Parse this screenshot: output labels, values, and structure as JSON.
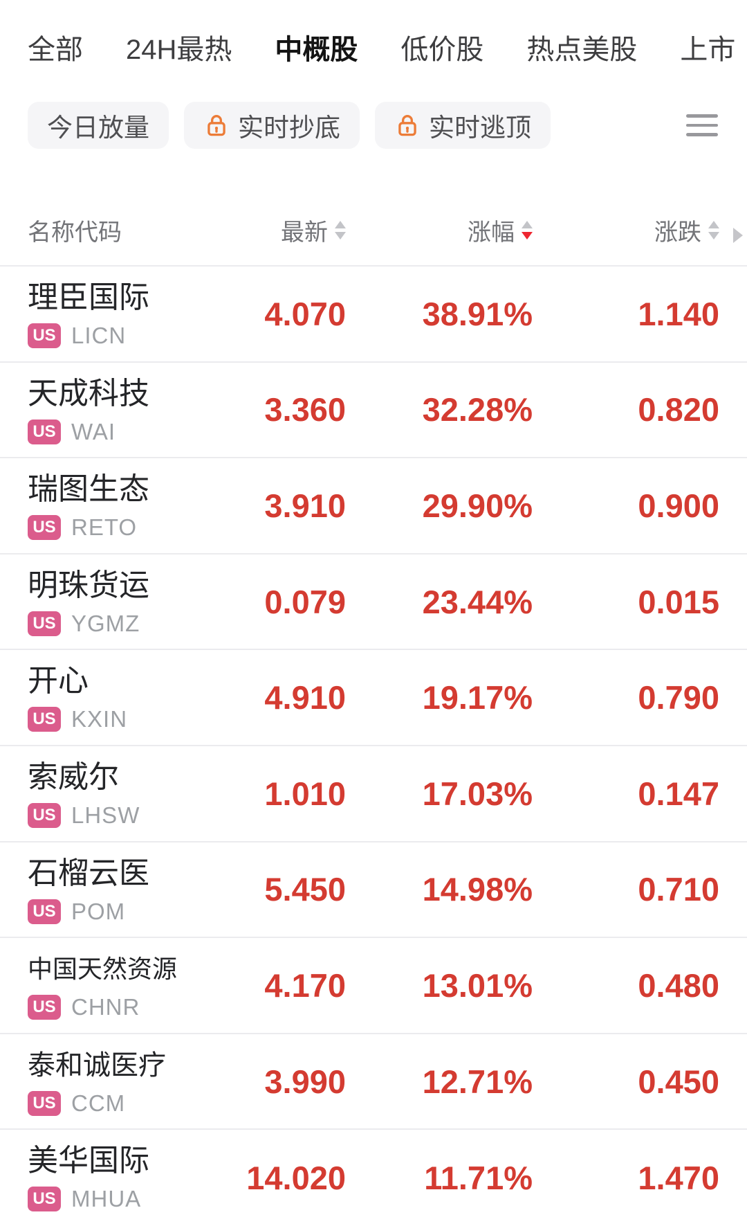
{
  "tabs": {
    "items": [
      {
        "label": "全部",
        "active": false
      },
      {
        "label": "24H最热",
        "active": false
      },
      {
        "label": "中概股",
        "active": true
      },
      {
        "label": "低价股",
        "active": false
      },
      {
        "label": "热点美股",
        "active": false
      },
      {
        "label": "上市",
        "active": false
      }
    ]
  },
  "filter_bar": {
    "buttons": [
      {
        "label": "今日放量",
        "locked": false
      },
      {
        "label": "实时抄底",
        "locked": true
      },
      {
        "label": "实时逃顶",
        "locked": true
      }
    ]
  },
  "table": {
    "header": [
      {
        "label": "名称代码",
        "sortable": false
      },
      {
        "label": "最新",
        "sort": "none"
      },
      {
        "label": "涨幅",
        "sort": "desc"
      },
      {
        "label": "涨跌",
        "sort": "none",
        "more_indicator": true
      }
    ],
    "rows": [
      {
        "name": "理臣国际",
        "market": "US",
        "code": "LICN",
        "last": "4.070",
        "change_pct": "38.91%",
        "change": "1.140"
      },
      {
        "name": "天成科技",
        "market": "US",
        "code": "WAI",
        "last": "3.360",
        "change_pct": "32.28%",
        "change": "0.820"
      },
      {
        "name": "瑞图生态",
        "market": "US",
        "code": "RETO",
        "last": "3.910",
        "change_pct": "29.90%",
        "change": "0.900"
      },
      {
        "name": "明珠货运",
        "market": "US",
        "code": "YGMZ",
        "last": "0.079",
        "change_pct": "23.44%",
        "change": "0.015"
      },
      {
        "name": "开心",
        "market": "US",
        "code": "KXIN",
        "last": "4.910",
        "change_pct": "19.17%",
        "change": "0.790"
      },
      {
        "name": "索威尔",
        "market": "US",
        "code": "LHSW",
        "last": "1.010",
        "change_pct": "17.03%",
        "change": "0.147"
      },
      {
        "name": "石榴云医",
        "market": "US",
        "code": "POM",
        "last": "5.450",
        "change_pct": "14.98%",
        "change": "0.710"
      },
      {
        "name": "中国天然资源",
        "market": "US",
        "code": "CHNR",
        "last": "4.170",
        "change_pct": "13.01%",
        "change": "0.480"
      },
      {
        "name": "泰和诚医疗",
        "market": "US",
        "code": "CCM",
        "last": "3.990",
        "change_pct": "12.71%",
        "change": "0.450"
      },
      {
        "name": "美华国际",
        "market": "US",
        "code": "MHUA",
        "last": "14.020",
        "change_pct": "11.71%",
        "change": "1.470"
      }
    ]
  },
  "colors": {
    "accent_red": "#ee2630",
    "value_red": "#d43b31",
    "badge_pink": "#db5c8c",
    "lock_orange": "#ec7c38"
  }
}
